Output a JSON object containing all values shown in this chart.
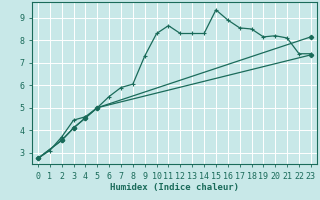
{
  "xlabel": "Humidex (Indice chaleur)",
  "bg_color": "#c8e8e8",
  "grid_color": "#ffffff",
  "line_color": "#1a6b5a",
  "xlim": [
    -0.5,
    23.5
  ],
  "ylim": [
    2.5,
    9.7
  ],
  "xticks": [
    0,
    1,
    2,
    3,
    4,
    5,
    6,
    7,
    8,
    9,
    10,
    11,
    12,
    13,
    14,
    15,
    16,
    17,
    18,
    19,
    20,
    21,
    22,
    23
  ],
  "yticks": [
    3,
    4,
    5,
    6,
    7,
    8,
    9
  ],
  "curve1_x": [
    0,
    1,
    2,
    3,
    4,
    5,
    6,
    7,
    8,
    9,
    10,
    11,
    12,
    13,
    14,
    15,
    16,
    17,
    18,
    19,
    20,
    21,
    22,
    23
  ],
  "curve1_y": [
    2.75,
    3.1,
    3.7,
    4.45,
    4.6,
    5.0,
    5.5,
    5.9,
    6.05,
    7.3,
    8.3,
    8.65,
    8.3,
    8.3,
    8.3,
    9.35,
    8.9,
    8.55,
    8.5,
    8.15,
    8.2,
    8.1,
    7.4,
    7.4
  ],
  "curve2_x": [
    0,
    2,
    3,
    4,
    5,
    23
  ],
  "curve2_y": [
    2.75,
    3.55,
    4.1,
    4.55,
    5.0,
    8.15
  ],
  "curve3_x": [
    0,
    2,
    3,
    4,
    5,
    23
  ],
  "curve3_y": [
    2.75,
    3.55,
    4.1,
    4.55,
    5.0,
    7.35
  ]
}
